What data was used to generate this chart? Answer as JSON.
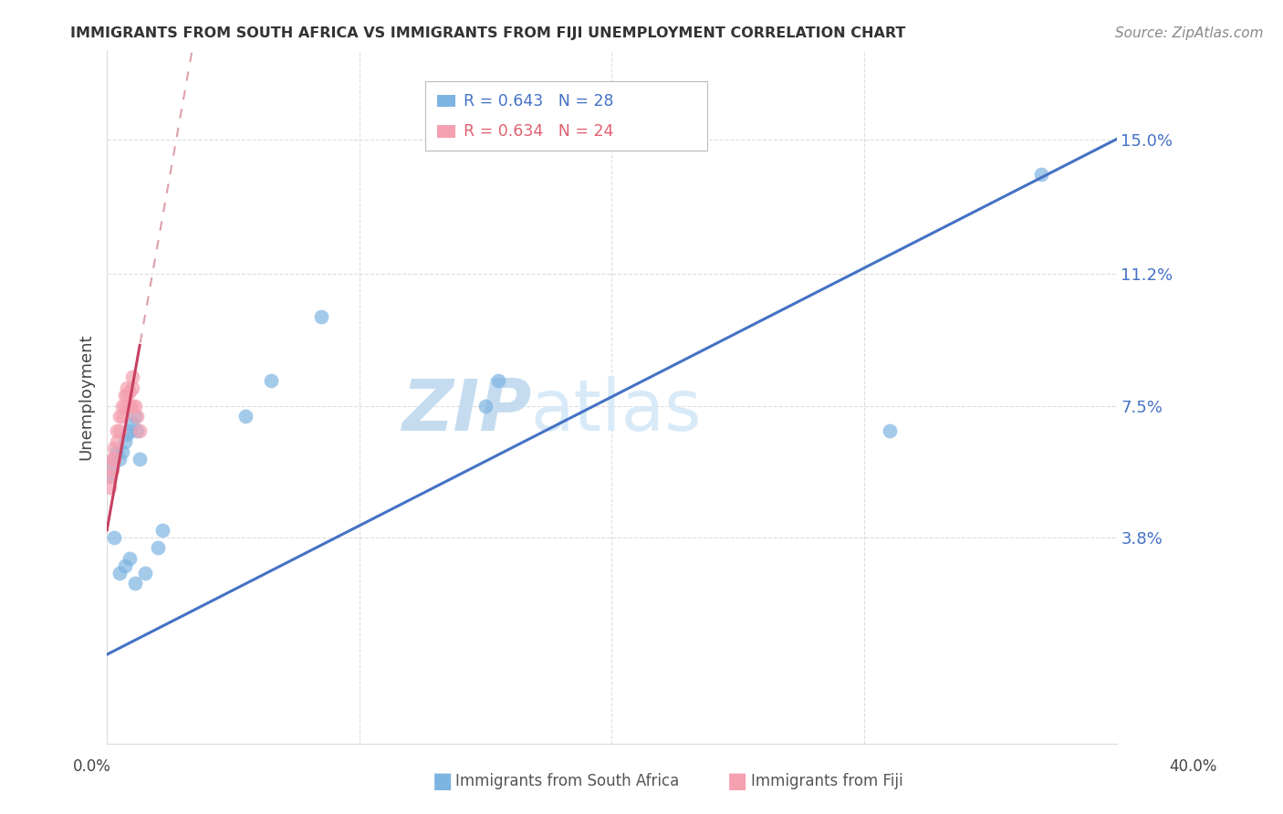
{
  "title": "IMMIGRANTS FROM SOUTH AFRICA VS IMMIGRANTS FROM FIJI UNEMPLOYMENT CORRELATION CHART",
  "source": "Source: ZipAtlas.com",
  "ylabel": "Unemployment",
  "watermark": "ZIPatlas",
  "ytick_labels": [
    "15.0%",
    "11.2%",
    "7.5%",
    "3.8%"
  ],
  "ytick_values": [
    0.15,
    0.112,
    0.075,
    0.038
  ],
  "south_africa_color": "#7EB4E2",
  "south_africa_line_color": "#4472C4",
  "fiji_color": "#F4A0B0",
  "fiji_line_color": "#C84060",
  "fiji_line_dashed_color": "#E0909A",
  "xlim": [
    0.0,
    0.4
  ],
  "ylim": [
    -0.02,
    0.175
  ],
  "sa_R": "0.643",
  "sa_N": "28",
  "fj_R": "0.634",
  "fj_N": "24",
  "sa_line_x0": 0.0,
  "sa_line_y0": 0.005,
  "sa_line_x1": 0.4,
  "sa_line_y1": 0.15,
  "fj_line_x0": 0.0,
  "fj_line_y0": 0.04,
  "fj_line_x1": 0.013,
  "fj_line_y1": 0.092
}
